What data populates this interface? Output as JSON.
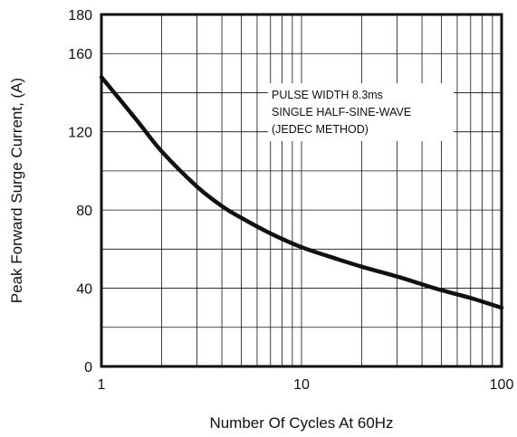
{
  "chart_data": {
    "type": "line",
    "title": "",
    "xlabel": "Number Of Cycles At 60Hz",
    "ylabel": "Peak Forward Surge Current, (A)",
    "xscale": "log",
    "xlim": [
      1,
      100
    ],
    "ylim": [
      0,
      180
    ],
    "x_ticks": [
      1,
      10,
      100
    ],
    "x_tick_labels": [
      "1",
      "10",
      "100"
    ],
    "y_ticks": [
      0,
      40,
      80,
      120,
      160,
      180
    ],
    "y_tick_labels": [
      "0",
      "40",
      "80",
      "120",
      "160",
      "180"
    ],
    "y_gridlines": [
      20,
      40,
      60,
      80,
      100,
      120,
      140,
      160
    ],
    "grid": true,
    "legend": "none",
    "annotation": {
      "lines": [
        "PULSE WIDTH 8.3ms",
        "SINGLE HALF-SINE-WAVE",
        "(JEDEC METHOD)"
      ],
      "placement": "top-right"
    },
    "series": [
      {
        "x": [
          1,
          1.5,
          2,
          3,
          4,
          5,
          7,
          10,
          15,
          20,
          30,
          40,
          50,
          70,
          100
        ],
        "y": [
          148,
          126,
          110,
          92,
          82,
          76,
          68,
          61,
          55,
          51,
          46,
          42,
          39,
          35,
          30
        ],
        "color": "#111111"
      }
    ]
  }
}
